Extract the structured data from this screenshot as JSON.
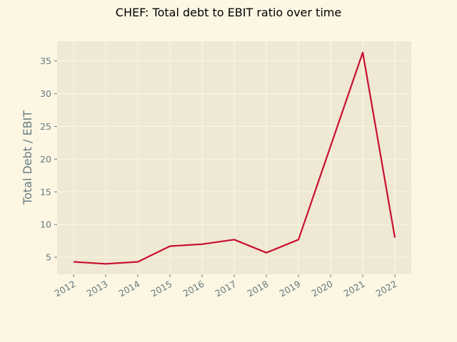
{
  "chart_data": {
    "type": "line",
    "title": "CHEF: Total debt to EBIT ratio over time",
    "xlabel": "",
    "ylabel": "Total Debt / EBIT",
    "x": [
      "2012",
      "2013",
      "2014",
      "2015",
      "2016",
      "2017",
      "2018",
      "2019",
      "2020",
      "2021",
      "2022"
    ],
    "series": [
      {
        "values": [
          4.3,
          4.0,
          4.3,
          6.7,
          7.0,
          7.7,
          5.7,
          7.7,
          22.0,
          36.3,
          8.0
        ]
      }
    ],
    "yticks": [
      5,
      10,
      15,
      20,
      25,
      30,
      35
    ],
    "ylim": [
      2.4,
      38.0
    ],
    "grid": true,
    "colors": {
      "line": "#c8102e",
      "plot_bg": "#eee8d5",
      "page_bg": "#fdf6e3",
      "grid": "#fdf6e3"
    }
  }
}
